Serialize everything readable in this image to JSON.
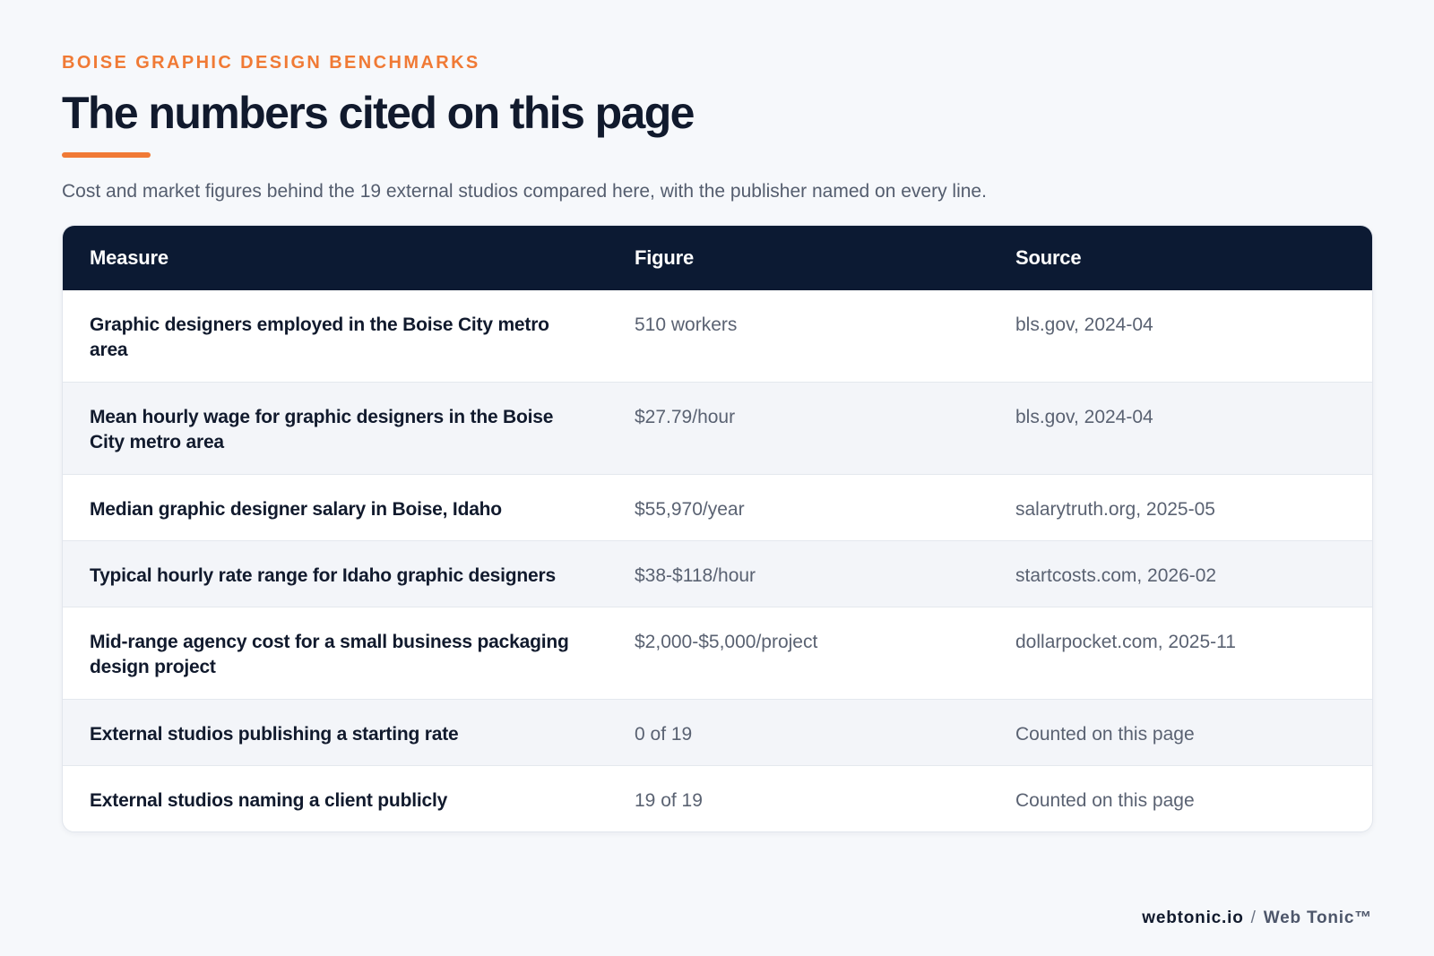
{
  "header": {
    "eyebrow": "BOISE GRAPHIC DESIGN BENCHMARKS",
    "title": "The numbers cited on this page",
    "subtitle": "Cost and market figures behind the 19 external studios compared here, with the publisher named on every line."
  },
  "table": {
    "columns": [
      "Measure",
      "Figure",
      "Source"
    ],
    "rows": [
      {
        "measure": "Graphic designers employed in the Boise City metro area",
        "figure": "510 workers",
        "source": "bls.gov, 2024-04"
      },
      {
        "measure": "Mean hourly wage for graphic designers in the Boise City metro area",
        "figure": "$27.79/hour",
        "source": "bls.gov, 2024-04"
      },
      {
        "measure": "Median graphic designer salary in Boise, Idaho",
        "figure": "$55,970/year",
        "source": "salarytruth.org, 2025-05"
      },
      {
        "measure": "Typical hourly rate range for Idaho graphic designers",
        "figure": "$38-$118/hour",
        "source": "startcosts.com, 2026-02"
      },
      {
        "measure": "Mid-range agency cost for a small business packaging design project",
        "figure": "$2,000-$5,000/project",
        "source": "dollarpocket.com, 2025-11"
      },
      {
        "measure": "External studios publishing a starting rate",
        "figure": "0 of 19",
        "source": "Counted on this page"
      },
      {
        "measure": "External studios naming a client publicly",
        "figure": "19 of 19",
        "source": "Counted on this page"
      }
    ]
  },
  "footer": {
    "domain": "webtonic.io",
    "separator": "/",
    "brand": "Web Tonic™"
  },
  "colors": {
    "accent": "#f07a35",
    "header_bg": "#0c1a33",
    "page_bg": "#f6f8fb"
  }
}
